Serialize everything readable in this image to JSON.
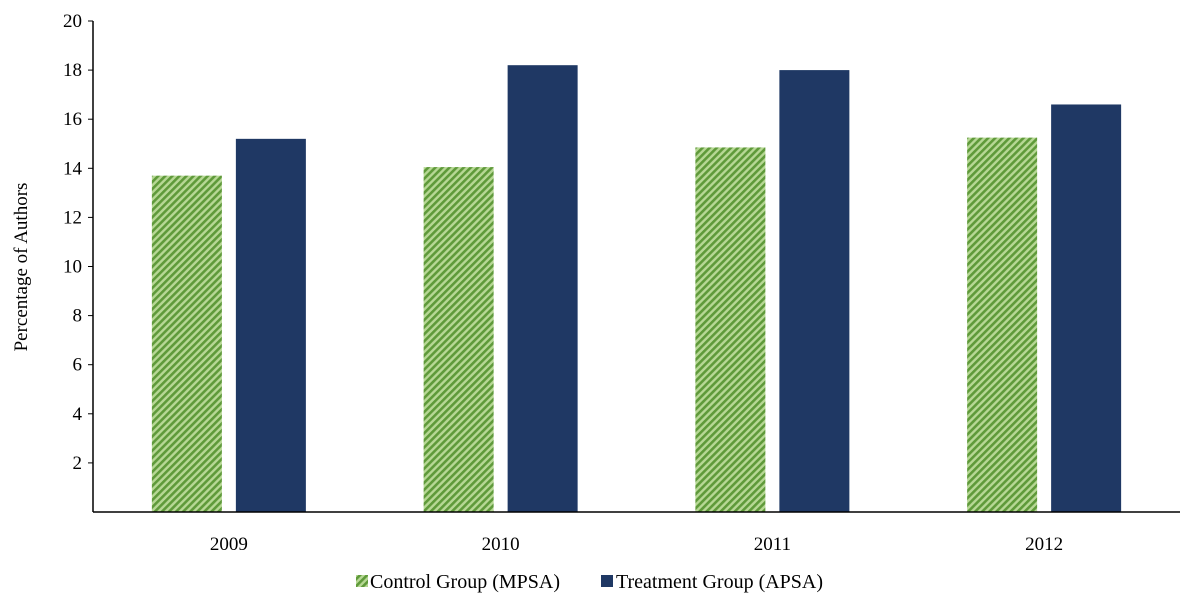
{
  "chart_data": {
    "type": "bar",
    "categories": [
      "2009",
      "2010",
      "2011",
      "2012"
    ],
    "series": [
      {
        "name": "Control Group (MPSA)",
        "values": [
          13.7,
          14.05,
          14.85,
          15.25
        ],
        "color": "#76a84a",
        "pattern": "diagonal-stripes"
      },
      {
        "name": "Treatment Group (APSA)",
        "values": [
          15.2,
          18.2,
          18.0,
          16.6
        ],
        "color": "#1f3864",
        "pattern": "solid"
      }
    ],
    "title": "",
    "xlabel": "",
    "ylabel": "Percentage  of Authors",
    "ylim": [
      0,
      20
    ],
    "yticks": [
      2,
      4,
      6,
      8,
      10,
      12,
      14,
      16,
      18,
      20
    ],
    "grid": false,
    "legend_position": "bottom-center"
  }
}
